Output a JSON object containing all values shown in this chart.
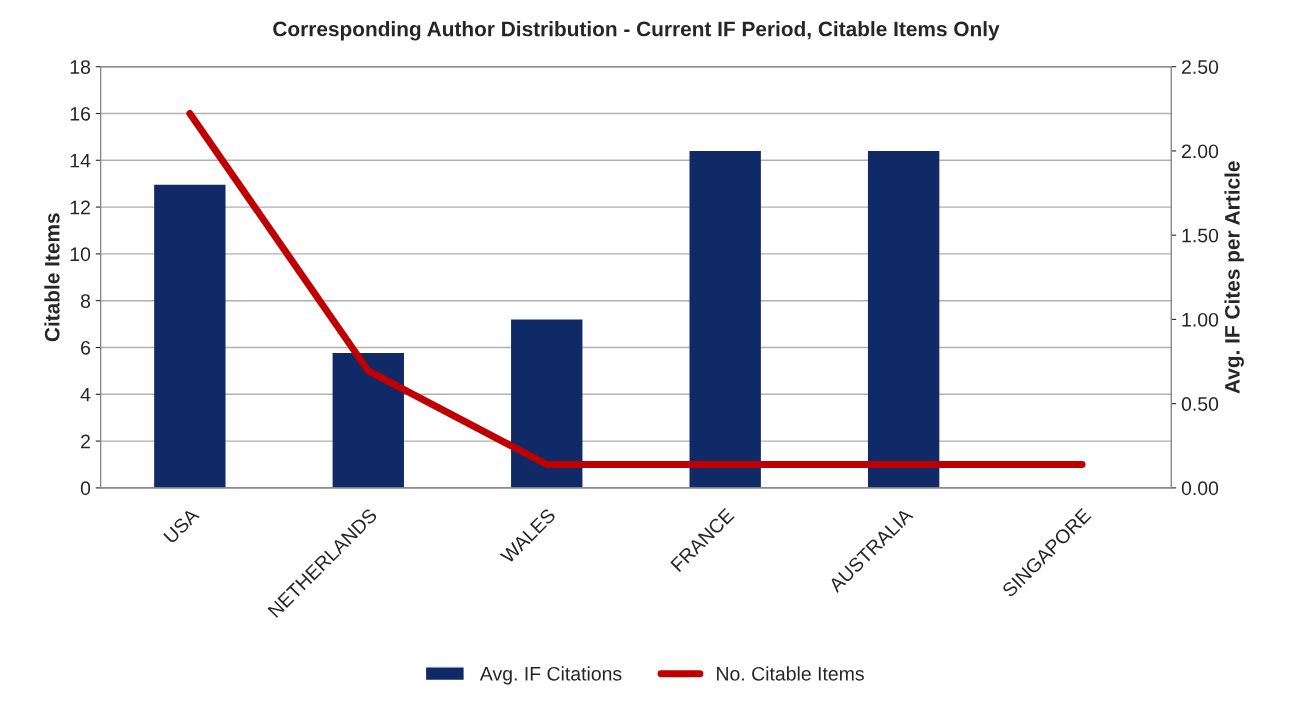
{
  "chart_data": {
    "type": "bar",
    "title": "Corresponding Author Distribution - Current IF Period, Citable Items Only",
    "ylabel": "Citable Items",
    "y2label": "Avg. IF Cites per Article",
    "categories": [
      "USA",
      "NETHERLANDS",
      "WALES",
      "FRANCE",
      "AUSTRALIA",
      "SINGAPORE"
    ],
    "series": [
      {
        "name": "Avg. IF Citations",
        "axis": "y2",
        "color": "#0f2a66",
        "values": [
          1.8,
          0.8,
          1.0,
          2.0,
          2.0,
          0
        ]
      },
      {
        "name": "No. Citable Items",
        "type": "line",
        "color": "#c00000",
        "values": [
          16,
          5,
          1,
          1,
          1,
          1
        ]
      }
    ],
    "ylim": [
      0,
      18
    ],
    "yticks": [
      0,
      2,
      4,
      6,
      8,
      10,
      12,
      14,
      16,
      18
    ],
    "y2lim": [
      0,
      2.5
    ],
    "y2ticks": [
      {
        "value": 0,
        "label": "0.00"
      },
      {
        "value": 0.5,
        "label": "0.50"
      },
      {
        "value": 1,
        "label": "1.00"
      },
      {
        "value": 1.5,
        "label": "1.50"
      },
      {
        "value": 2,
        "label": "2.00"
      },
      {
        "value": 2.5,
        "label": "2.50"
      }
    ],
    "grid": "y",
    "legend": "bottom",
    "marker": "none",
    "line_style": "solid"
  }
}
